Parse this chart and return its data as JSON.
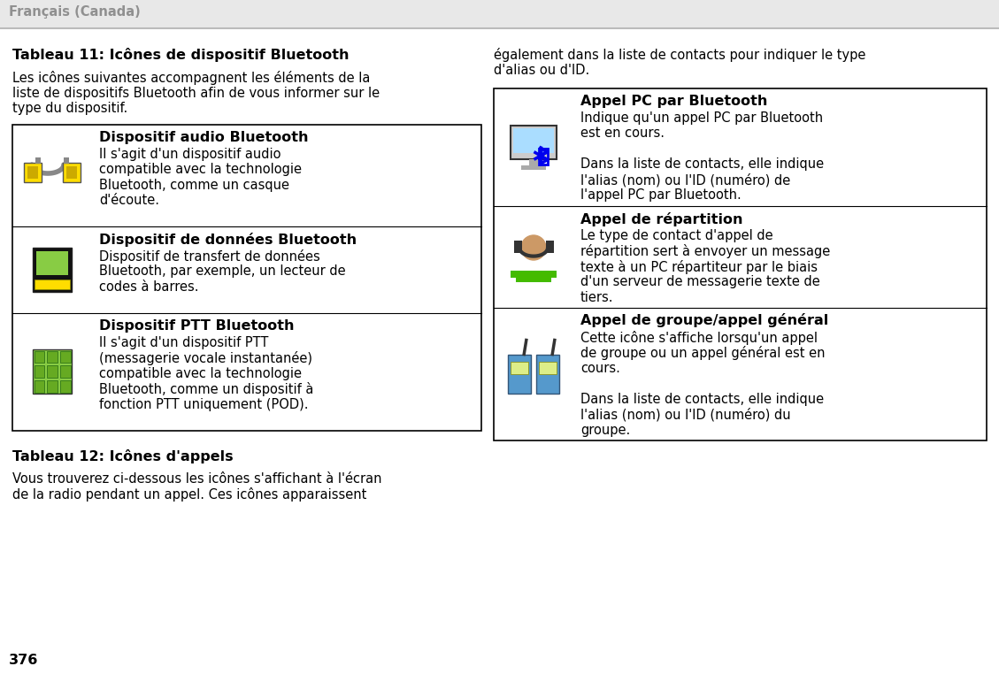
{
  "header_text": "Français (Canada)",
  "header_bg": "#e8e8e8",
  "page_bg": "#ffffff",
  "footer_text": "376",
  "left_col": {
    "table11_title": "Tableau 11: Icônes de dispositif Bluetooth",
    "table11_intro": "Les icônes suivantes accompagnent les éléments de la\nliste de dispositifs Bluetooth afin de vous informer sur le\ntype du dispositif.",
    "rows": [
      {
        "title": "Dispositif audio Bluetooth",
        "body": "Il s'agit d'un dispositif audio\ncompatible avec la technologie\nBluetooth, comme un casque\nd'écoute."
      },
      {
        "title": "Dispositif de données Bluetooth",
        "body": "Dispositif de transfert de données\nBluetooth, par exemple, un lecteur de\ncodes à barres."
      },
      {
        "title": "Dispositif PTT Bluetooth",
        "body": "Il s'agit d'un dispositif PTT\n(messagerie vocale instantanée)\ncompatible avec la technologie\nBluetooth, comme un dispositif à\nfonction PTT uniquement (POD)."
      }
    ],
    "table12_title": "Tableau 12: Icônes d'appels",
    "table12_intro": "Vous trouverez ci-dessous les icônes s'affichant à l'écran\nde la radio pendant un appel. Ces icônes apparaissent"
  },
  "right_col": {
    "intro": "également dans la liste de contacts pour indiquer le type\nd'alias ou d'ID.",
    "rows": [
      {
        "title": "Appel PC par Bluetooth",
        "body": "Indique qu'un appel PC par Bluetooth\nest en cours.\n\nDans la liste de contacts, elle indique\nl'alias (nom) ou l'ID (numéro) de\nl'appel PC par Bluetooth."
      },
      {
        "title": "Appel de répartition",
        "body": "Le type de contact d'appel de\nrépartition sert à envoyer un message\ntexte à un PC répartiteur par le biais\nd'un serveur de messagerie texte de\ntiers."
      },
      {
        "title": "Appel de groupe/appel général",
        "body": "Cette icône s'affiche lorsqu'un appel\nde groupe ou un appel général est en\ncours.\n\nDans la liste de contacts, elle indique\nl'alias (nom) ou l'ID (numéro) du\ngroupe."
      }
    ]
  },
  "border_color": "#000000",
  "text_color": "#000000",
  "header_text_color": "#909090",
  "fs_heading": 11.5,
  "fs_body": 10.5,
  "fs_header": 10.5,
  "fs_footer": 11.5
}
